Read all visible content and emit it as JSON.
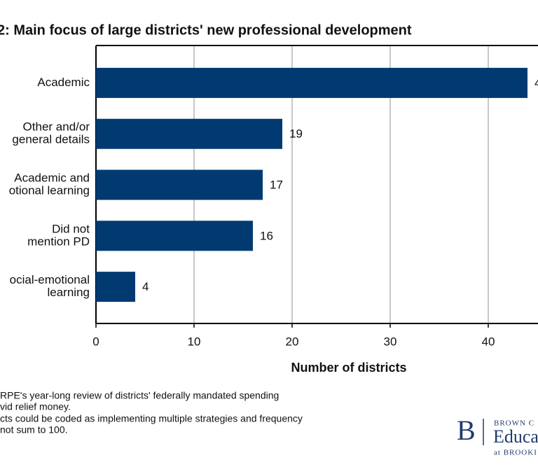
{
  "chart_data": {
    "type": "bar",
    "orientation": "horizontal",
    "title": "2: Main focus of large districts' new professional development",
    "categories": [
      [
        "Academic"
      ],
      [
        "Other and/or",
        "general details"
      ],
      [
        "Academic and",
        "otional learning"
      ],
      [
        "Did not",
        "mention PD"
      ],
      [
        "ocial-emotional",
        "learning"
      ]
    ],
    "values": [
      44,
      19,
      17,
      16,
      4
    ],
    "color": "#003a70",
    "xlim": [
      0,
      45
    ],
    "xticks": [
      0,
      10,
      20,
      30,
      40
    ],
    "grid": true,
    "xlabel": "Number of districts",
    "notes": [
      "RPE's year-long review of districts' federally mandated spending",
      "vid relief money.",
      "cts could be coded as implementing multiple strategies and frequency",
      "not sum to 100."
    ],
    "logo": {
      "mark": "B",
      "line1": "BROWN C",
      "line2": "Educat",
      "line3": "at BROOKI"
    }
  }
}
